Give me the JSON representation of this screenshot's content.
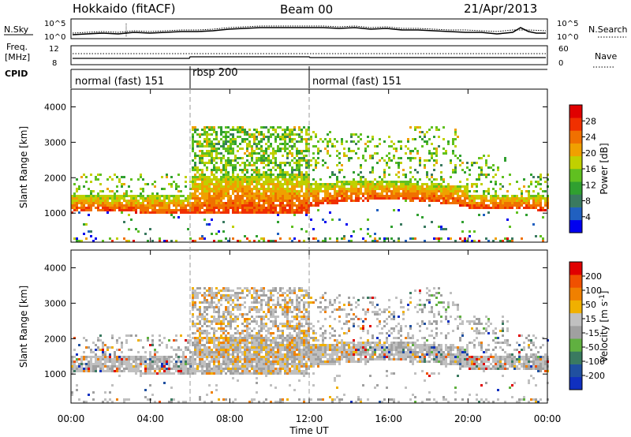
{
  "header": {
    "station": "Hokkaido (fitACF)",
    "beam": "Beam 00",
    "date": "21/Apr/2013"
  },
  "summary_panels": {
    "nsky_label": "N.Sky",
    "nsky_ticks": [
      "10^5",
      "10^0"
    ],
    "nsearch_label": "N.Search",
    "nsearch_ticks": [
      "10^5",
      "10^0"
    ],
    "freq_label_1": "Freq.",
    "freq_label_2": "[MHz]",
    "freq_ticks": [
      "12",
      "8"
    ],
    "nave_label": "Nave",
    "nave_ticks": [
      "60",
      "0"
    ],
    "cpid_label": "CPID",
    "cpid_segments": [
      {
        "label": "normal (fast) 151",
        "start": 0,
        "end": 6
      },
      {
        "label": "rbsp 200",
        "start": 6,
        "end": 12
      },
      {
        "label": "normal (fast) 151",
        "start": 12,
        "end": 24
      }
    ]
  },
  "chart_data": [
    {
      "type": "heatmap",
      "ylabel": "Slant Range [km]",
      "yticks": [
        "1000",
        "2000",
        "3000",
        "4000"
      ],
      "ylim": [
        180,
        4500
      ],
      "colorbar_label": "Power [dB]",
      "colorbar_ticks": [
        "4",
        "8",
        "12",
        "16",
        "20",
        "24",
        "28"
      ],
      "colors": [
        "#0000f0",
        "#2060c0",
        "#3a7a60",
        "#30a030",
        "#60c020",
        "#c0d000",
        "#f0a000",
        "#f07000",
        "#f03000",
        "#e00000"
      ]
    },
    {
      "type": "heatmap",
      "ylabel": "Slant Range [km]",
      "yticks": [
        "1000",
        "2000",
        "3000",
        "4000"
      ],
      "ylim": [
        180,
        4500
      ],
      "colorbar_label": "Velocity [m s^-1]",
      "colorbar_ticks": [
        "200",
        "100",
        "50",
        "15",
        "-15",
        "-50",
        "-100",
        "-200"
      ],
      "colors": [
        "#1030c0",
        "#2050a0",
        "#3a7a60",
        "#60b040",
        "#a0a0a0",
        "#c0c0c0",
        "#f0b000",
        "#f08000",
        "#f05000",
        "#e00000"
      ]
    }
  ],
  "xaxis": {
    "label": "Time UT",
    "ticks": [
      "00:00",
      "04:00",
      "08:00",
      "12:00",
      "16:00",
      "20:00",
      "00:00"
    ]
  }
}
